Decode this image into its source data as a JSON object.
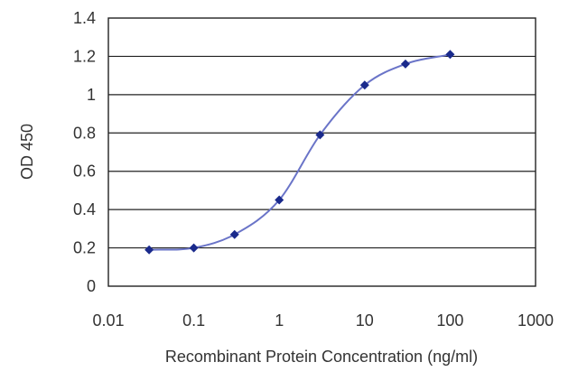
{
  "chart_data": {
    "type": "line",
    "title": "",
    "xlabel": "Recombinant Protein Concentration (ng/ml)",
    "ylabel": "OD 450",
    "xscale": "log",
    "xlim": [
      0.01,
      1000
    ],
    "ylim": [
      0,
      1.4
    ],
    "xticks": [
      0.01,
      0.1,
      1,
      10,
      100,
      1000
    ],
    "xtick_labels": [
      "0.01",
      "0.1",
      "1",
      "10",
      "100",
      "1000"
    ],
    "yticks": [
      0,
      0.2,
      0.4,
      0.6,
      0.8,
      1,
      1.2,
      1.4
    ],
    "ytick_labels": [
      "0",
      "0.2",
      "0.4",
      "0.6",
      "0.8",
      "1",
      "1.2",
      "1.4"
    ],
    "grid": "horizontal",
    "legend": "none",
    "series": [
      {
        "x": [
          0.03,
          0.1,
          0.3,
          1,
          3,
          10,
          30,
          100
        ],
        "y": [
          0.19,
          0.2,
          0.27,
          0.45,
          0.79,
          1.05,
          1.16,
          1.21
        ],
        "color": "#2c3a9e",
        "marker": "diamond",
        "curve": "smooth-fit"
      }
    ],
    "colors": {
      "curve": "#6a74c8",
      "marker": "#1a2a8c",
      "grid": "#222222",
      "frame": "#222222"
    }
  }
}
